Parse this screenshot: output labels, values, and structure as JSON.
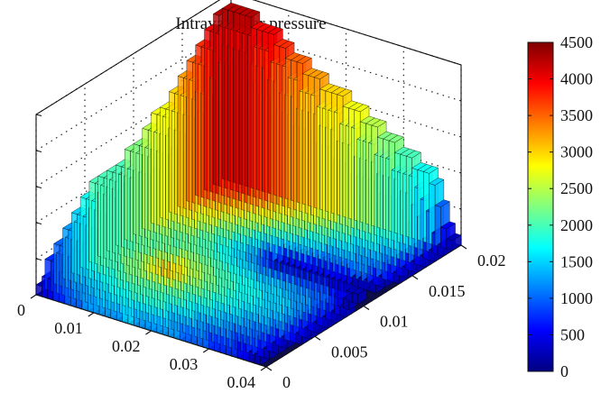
{
  "chart_data": {
    "type": "surface3d",
    "title": "Intravascular pressure",
    "x_ticks": [
      "0",
      "0.01",
      "0.02",
      "0.03",
      "0.04"
    ],
    "y_ticks": [
      "0",
      "0.005",
      "0.01",
      "0.015",
      "0.02"
    ],
    "xlim": [
      0,
      0.04
    ],
    "ylim": [
      0,
      0.02
    ],
    "colorbar": {
      "colormap": "jet",
      "range": [
        0,
        4500
      ],
      "ticks": [
        "0",
        "500",
        "1000",
        "1500",
        "2000",
        "2500",
        "3000",
        "3500",
        "4000",
        "4500"
      ]
    },
    "grid": true,
    "surface": {
      "note_rows": "rows run along x from 0 to 0.04, columns along y from 0 to 0.02; values are pressure",
      "rows": [
        [
          0,
          900,
          1300,
          1800,
          2000,
          1900,
          2300,
          2600,
          2900,
          3200,
          3700,
          4100,
          4400
        ],
        [
          700,
          1100,
          1500,
          1900,
          2100,
          2000,
          2200,
          2500,
          2800,
          3100,
          3600,
          4000,
          4300
        ],
        [
          1000,
          1400,
          1700,
          2100,
          2400,
          2200,
          2000,
          2300,
          2600,
          2900,
          3300,
          3800,
          4000
        ],
        [
          1200,
          1600,
          1900,
          2300,
          3400,
          2500,
          2100,
          1900,
          2200,
          2600,
          3000,
          3400,
          3600
        ],
        [
          1300,
          1700,
          2000,
          2200,
          2700,
          2300,
          1800,
          1600,
          1900,
          2300,
          2700,
          3000,
          3300
        ],
        [
          1200,
          1500,
          1800,
          2000,
          2200,
          2000,
          1500,
          1000,
          1500,
          2000,
          2400,
          2700,
          3000
        ],
        [
          1100,
          1300,
          1600,
          1800,
          1900,
          1700,
          1200,
          0,
          1300,
          1700,
          2100,
          2400,
          2700
        ],
        [
          900,
          1200,
          1400,
          1600,
          1700,
          1500,
          1100,
          0,
          1200,
          1500,
          1800,
          2100,
          2300
        ],
        [
          700,
          1000,
          1200,
          1400,
          1500,
          1300,
          900,
          0,
          1100,
          1300,
          1600,
          1800,
          2000
        ],
        [
          500,
          800,
          1000,
          1200,
          1300,
          1100,
          800,
          0,
          1000,
          1200,
          1400,
          1500,
          1700
        ],
        [
          0,
          0,
          0,
          0,
          0,
          0,
          0,
          0,
          0,
          0,
          0,
          0,
          0
        ]
      ]
    }
  }
}
